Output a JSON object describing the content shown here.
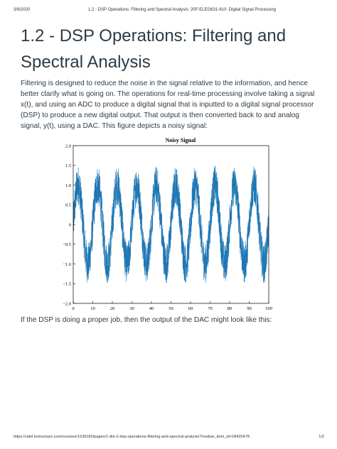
{
  "print_header": {
    "date": "3/9/2020",
    "title": "1.2 - DSP Operations: Filtering and Spectral Analysis: 20F-ELEG631-610: Digital Signal Processing"
  },
  "page": {
    "title": "1.2 - DSP Operations: Filtering and Spectral Analysis",
    "paragraph_1": "Filtering is designed to reduce the noise in the signal relative to the information, and hence better clarify what is going on. The operations for real-time processing involve taking a signal x(t), and using an ADC to produce a digital signal that is inputted to a digital signal processor (DSP) to produce a new digital output. That output is then converted back to and analog signal, y(t), using a DAC. This figure depicts a noisy signal:",
    "paragraph_2": "If the DSP is doing a proper job, then the output of the DAC might look like this:"
  },
  "chart_data": {
    "type": "line",
    "title": "Noisy Signal",
    "xlabel": "",
    "ylabel": "",
    "xlim": [
      0,
      100
    ],
    "ylim": [
      -2.0,
      2.0
    ],
    "x_ticks": [
      0,
      10,
      20,
      30,
      40,
      50,
      60,
      70,
      80,
      90,
      100
    ],
    "y_ticks": [
      2.0,
      1.5,
      1.0,
      0.5,
      0,
      -0.5,
      -1.0,
      -1.5,
      -2.0
    ],
    "y_tick_labels": [
      "2.0",
      "1.5",
      "1.0",
      "0.5",
      "0",
      "−0.5",
      "−1.0",
      "−1.5",
      "−2.0"
    ],
    "grid": false,
    "series": [
      {
        "name": "",
        "color": "#1f77b4",
        "signal": "sinusoid plus random noise",
        "amplitude": 1.0,
        "cycles": 10,
        "noise_amplitude": 0.5
      }
    ]
  },
  "print_footer": {
    "url": "https://udel.instructure.com/courses/1539182/pages/1-dot-2-dsp-operations-filtering-and-spectral-analysis?module_item_id=18420478",
    "page_number": "1/2"
  }
}
